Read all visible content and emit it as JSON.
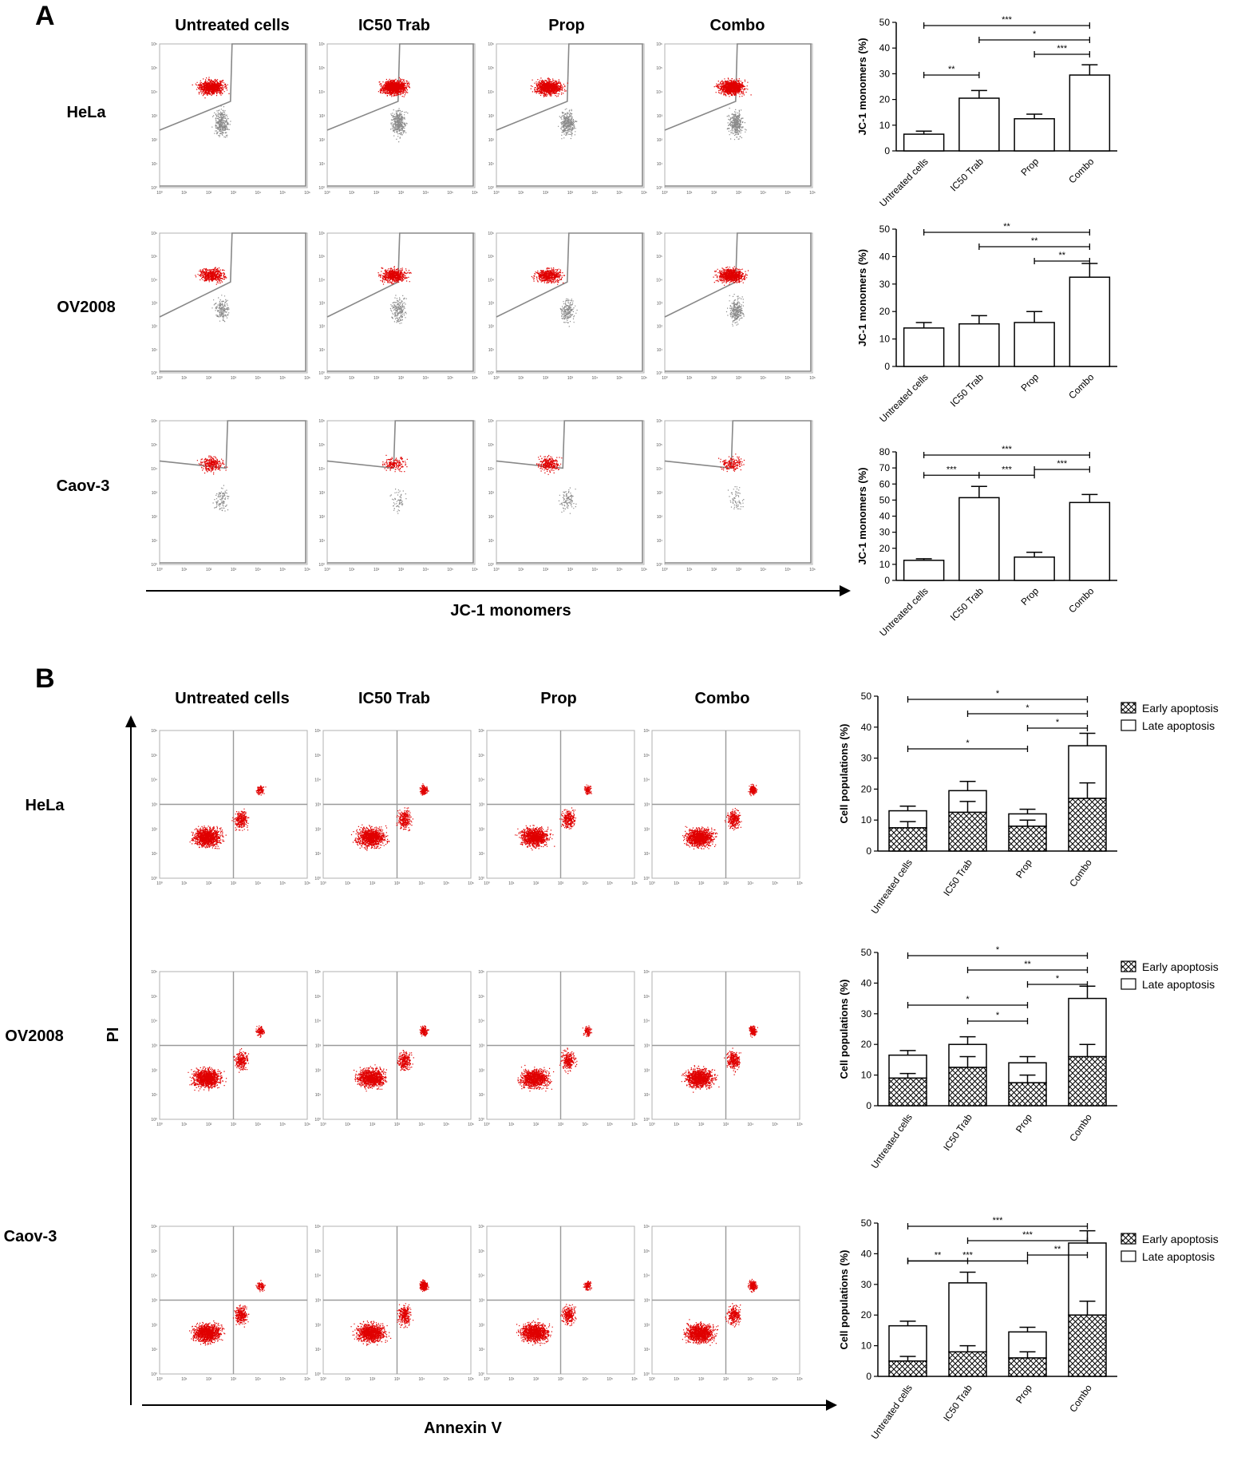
{
  "panels": {
    "A": {
      "letter": "A",
      "columns": [
        "Untreated cells",
        "IC50 Trab",
        "Prop",
        "Combo"
      ],
      "rows": [
        "HeLa",
        "OV2008",
        "Caov-3"
      ],
      "x_axis_label": "JC-1 monomers"
    },
    "B": {
      "letter": "B",
      "columns": [
        "Untreated cells",
        "IC50 Trab",
        "Prop",
        "Combo"
      ],
      "rows": [
        "HeLa",
        "OV2008",
        "Caov-3"
      ],
      "x_axis_label": "Annexin V",
      "y_axis_label": "PI"
    }
  },
  "flow_tick_labels": [
    "10⁰",
    "10¹",
    "10²",
    "10³",
    "10⁴",
    "10⁵",
    "10⁶",
    "10⁷"
  ],
  "colors": {
    "dots": "#e00000",
    "gray_dots": "#8a8a8a",
    "gate": "#888888",
    "bar": "#ffffff",
    "axis": "#000000"
  },
  "chart_data": [
    {
      "type": "bar",
      "panel": "A",
      "cell_line": "HeLa",
      "categories": [
        "Untreated cells",
        "IC50 Trab",
        "Prop",
        "Combo"
      ],
      "values": [
        6.5,
        20.5,
        12.5,
        29.5
      ],
      "errors": [
        1.2,
        3.0,
        1.8,
        4.0
      ],
      "ylabel": "JC-1 monomers (%)",
      "ylim": [
        0,
        50
      ],
      "yticks": [
        0,
        10,
        20,
        30,
        40,
        50
      ],
      "significance": [
        {
          "from": 0,
          "to": 3,
          "label": "***"
        },
        {
          "from": 1,
          "to": 3,
          "label": "*"
        },
        {
          "from": 2,
          "to": 3,
          "label": "***"
        },
        {
          "from": 0,
          "to": 1,
          "label": "**"
        }
      ]
    },
    {
      "type": "bar",
      "panel": "A",
      "cell_line": "OV2008",
      "categories": [
        "Untreated cells",
        "IC50 Trab",
        "Prop",
        "Combo"
      ],
      "values": [
        14,
        15.5,
        16,
        32.5
      ],
      "errors": [
        2.0,
        3.0,
        4.0,
        5.0
      ],
      "ylabel": "JC-1 monomers (%)",
      "ylim": [
        0,
        50
      ],
      "yticks": [
        0,
        10,
        20,
        30,
        40,
        50
      ],
      "significance": [
        {
          "from": 0,
          "to": 3,
          "label": "**"
        },
        {
          "from": 1,
          "to": 3,
          "label": "**"
        },
        {
          "from": 2,
          "to": 3,
          "label": "**"
        }
      ]
    },
    {
      "type": "bar",
      "panel": "A",
      "cell_line": "Caov-3",
      "categories": [
        "Untreated cells",
        "IC50 Trab",
        "Prop",
        "Combo"
      ],
      "values": [
        12.5,
        51.5,
        14.5,
        48.5
      ],
      "errors": [
        1.0,
        7.0,
        3.0,
        5.0
      ],
      "ylabel": "JC-1 monomers (%)",
      "ylim": [
        0,
        80
      ],
      "yticks": [
        0,
        10,
        20,
        30,
        40,
        50,
        60,
        70,
        80
      ],
      "significance": [
        {
          "from": 0,
          "to": 3,
          "label": "***"
        },
        {
          "from": 0,
          "to": 1,
          "label": "***"
        },
        {
          "from": 1,
          "to": 2,
          "label": "***"
        },
        {
          "from": 2,
          "to": 3,
          "label": "***"
        }
      ]
    },
    {
      "type": "stacked-bar",
      "panel": "B",
      "cell_line": "HeLa",
      "categories": [
        "Untreated cells",
        "IC50 Trab",
        "Prop",
        "Combo"
      ],
      "series": [
        {
          "name": "Early apoptosis",
          "values": [
            7.5,
            12.5,
            8,
            17
          ],
          "errors": [
            2.0,
            3.5,
            2.0,
            5.0
          ]
        },
        {
          "name": "Late apoptosis",
          "values": [
            5.5,
            7,
            4,
            17
          ],
          "errors": [
            1.5,
            3.0,
            1.5,
            4.0
          ]
        }
      ],
      "ylabel": "Cell populations (%)",
      "ylim": [
        0,
        50
      ],
      "yticks": [
        0,
        10,
        20,
        30,
        40,
        50
      ],
      "legend": "top-right",
      "significance": [
        {
          "from": 0,
          "to": 3,
          "label": "*"
        },
        {
          "from": 1,
          "to": 3,
          "label": "*"
        },
        {
          "from": 2,
          "to": 3,
          "label": "*"
        },
        {
          "from": 0,
          "to": 2,
          "label": "*"
        }
      ]
    },
    {
      "type": "stacked-bar",
      "panel": "B",
      "cell_line": "OV2008",
      "categories": [
        "Untreated cells",
        "IC50 Trab",
        "Prop",
        "Combo"
      ],
      "series": [
        {
          "name": "Early apoptosis",
          "values": [
            9,
            12.5,
            7.5,
            16
          ],
          "errors": [
            1.5,
            3.5,
            2.5,
            4.0
          ]
        },
        {
          "name": "Late apoptosis",
          "values": [
            7.5,
            7.5,
            6.5,
            19
          ],
          "errors": [
            1.5,
            2.5,
            2.0,
            4.0
          ]
        }
      ],
      "ylabel": "Cell populations (%)",
      "ylim": [
        0,
        50
      ],
      "yticks": [
        0,
        10,
        20,
        30,
        40,
        50
      ],
      "legend": "top-right",
      "significance": [
        {
          "from": 0,
          "to": 3,
          "label": "*"
        },
        {
          "from": 1,
          "to": 3,
          "label": "**"
        },
        {
          "from": 2,
          "to": 3,
          "label": "*"
        },
        {
          "from": 0,
          "to": 2,
          "label": "*"
        },
        {
          "from": 1,
          "to": 2,
          "label": "*"
        }
      ]
    },
    {
      "type": "stacked-bar",
      "panel": "B",
      "cell_line": "Caov-3",
      "categories": [
        "Untreated cells",
        "IC50 Trab",
        "Prop",
        "Combo"
      ],
      "series": [
        {
          "name": "Early apoptosis",
          "values": [
            5,
            8,
            6,
            20
          ],
          "errors": [
            1.5,
            2.0,
            2.0,
            4.5
          ]
        },
        {
          "name": "Late apoptosis",
          "values": [
            11.5,
            22.5,
            8.5,
            23.5
          ],
          "errors": [
            1.5,
            3.5,
            1.5,
            4.0
          ]
        }
      ],
      "ylabel": "Cell populations (%)",
      "ylim": [
        0,
        50
      ],
      "yticks": [
        0,
        10,
        20,
        30,
        40,
        50
      ],
      "legend": "top-right",
      "significance": [
        {
          "from": 0,
          "to": 3,
          "label": "***"
        },
        {
          "from": 1,
          "to": 3,
          "label": "***"
        },
        {
          "from": 2,
          "to": 3,
          "label": "**"
        },
        {
          "from": 0,
          "to": 2,
          "label": "***"
        },
        {
          "from": 0,
          "to": 1,
          "label": "**"
        }
      ]
    }
  ]
}
